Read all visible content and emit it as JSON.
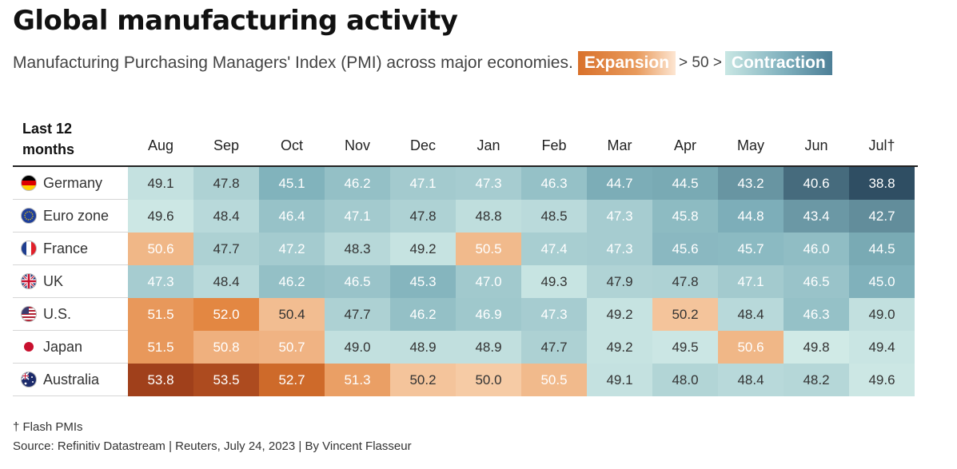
{
  "title": "Global manufacturing activity",
  "subtitle": "Manufacturing Purchasing Managers' Index (PMI) across major economies.",
  "legend": {
    "expansion": "Expansion",
    "threshold": "> 50 >",
    "contraction": "Contraction"
  },
  "header_label": "Last 12 months",
  "footnote": "† Flash PMIs",
  "source": "Source: Refinitiv Datastream | Reuters, July 24, 2023 | By Vincent Flasseur",
  "chart_data": {
    "type": "heatmap",
    "title": "Global manufacturing activity",
    "months": [
      "Aug",
      "Sep",
      "Oct",
      "Nov",
      "Dec",
      "Jan",
      "Feb",
      "Mar",
      "Apr",
      "May",
      "Jun",
      "Jul†"
    ],
    "threshold": 50,
    "rows": [
      {
        "country": "Germany",
        "flag": "germany-flag-icon",
        "values": [
          49.1,
          47.8,
          45.1,
          46.2,
          47.1,
          47.3,
          46.3,
          44.7,
          44.5,
          43.2,
          40.6,
          38.8
        ]
      },
      {
        "country": "Euro zone",
        "flag": "euro-zone-flag-icon",
        "values": [
          49.6,
          48.4,
          46.4,
          47.1,
          47.8,
          48.8,
          48.5,
          47.3,
          45.8,
          44.8,
          43.4,
          42.7
        ]
      },
      {
        "country": "France",
        "flag": "france-flag-icon",
        "values": [
          50.6,
          47.7,
          47.2,
          48.3,
          49.2,
          50.5,
          47.4,
          47.3,
          45.6,
          45.7,
          46.0,
          44.5
        ]
      },
      {
        "country": "UK",
        "flag": "uk-flag-icon",
        "values": [
          47.3,
          48.4,
          46.2,
          46.5,
          45.3,
          47.0,
          49.3,
          47.9,
          47.8,
          47.1,
          46.5,
          45.0
        ]
      },
      {
        "country": "U.S.",
        "flag": "us-flag-icon",
        "values": [
          51.5,
          52.0,
          50.4,
          47.7,
          46.2,
          46.9,
          47.3,
          49.2,
          50.2,
          48.4,
          46.3,
          49.0
        ]
      },
      {
        "country": "Japan",
        "flag": "japan-flag-icon",
        "values": [
          51.5,
          50.8,
          50.7,
          49.0,
          48.9,
          48.9,
          47.7,
          49.2,
          49.5,
          50.6,
          49.8,
          49.4
        ]
      },
      {
        "country": "Australia",
        "flag": "australia-flag-icon",
        "values": [
          53.8,
          53.5,
          52.7,
          51.3,
          50.2,
          50.0,
          50.5,
          49.1,
          48.0,
          48.4,
          48.2,
          49.6
        ]
      }
    ],
    "colors": {
      "expansion_low": "#f6cba5",
      "expansion_high": "#a0401b",
      "contraction_low": "#d3ece8",
      "contraction_high": "#2f4e63"
    }
  }
}
